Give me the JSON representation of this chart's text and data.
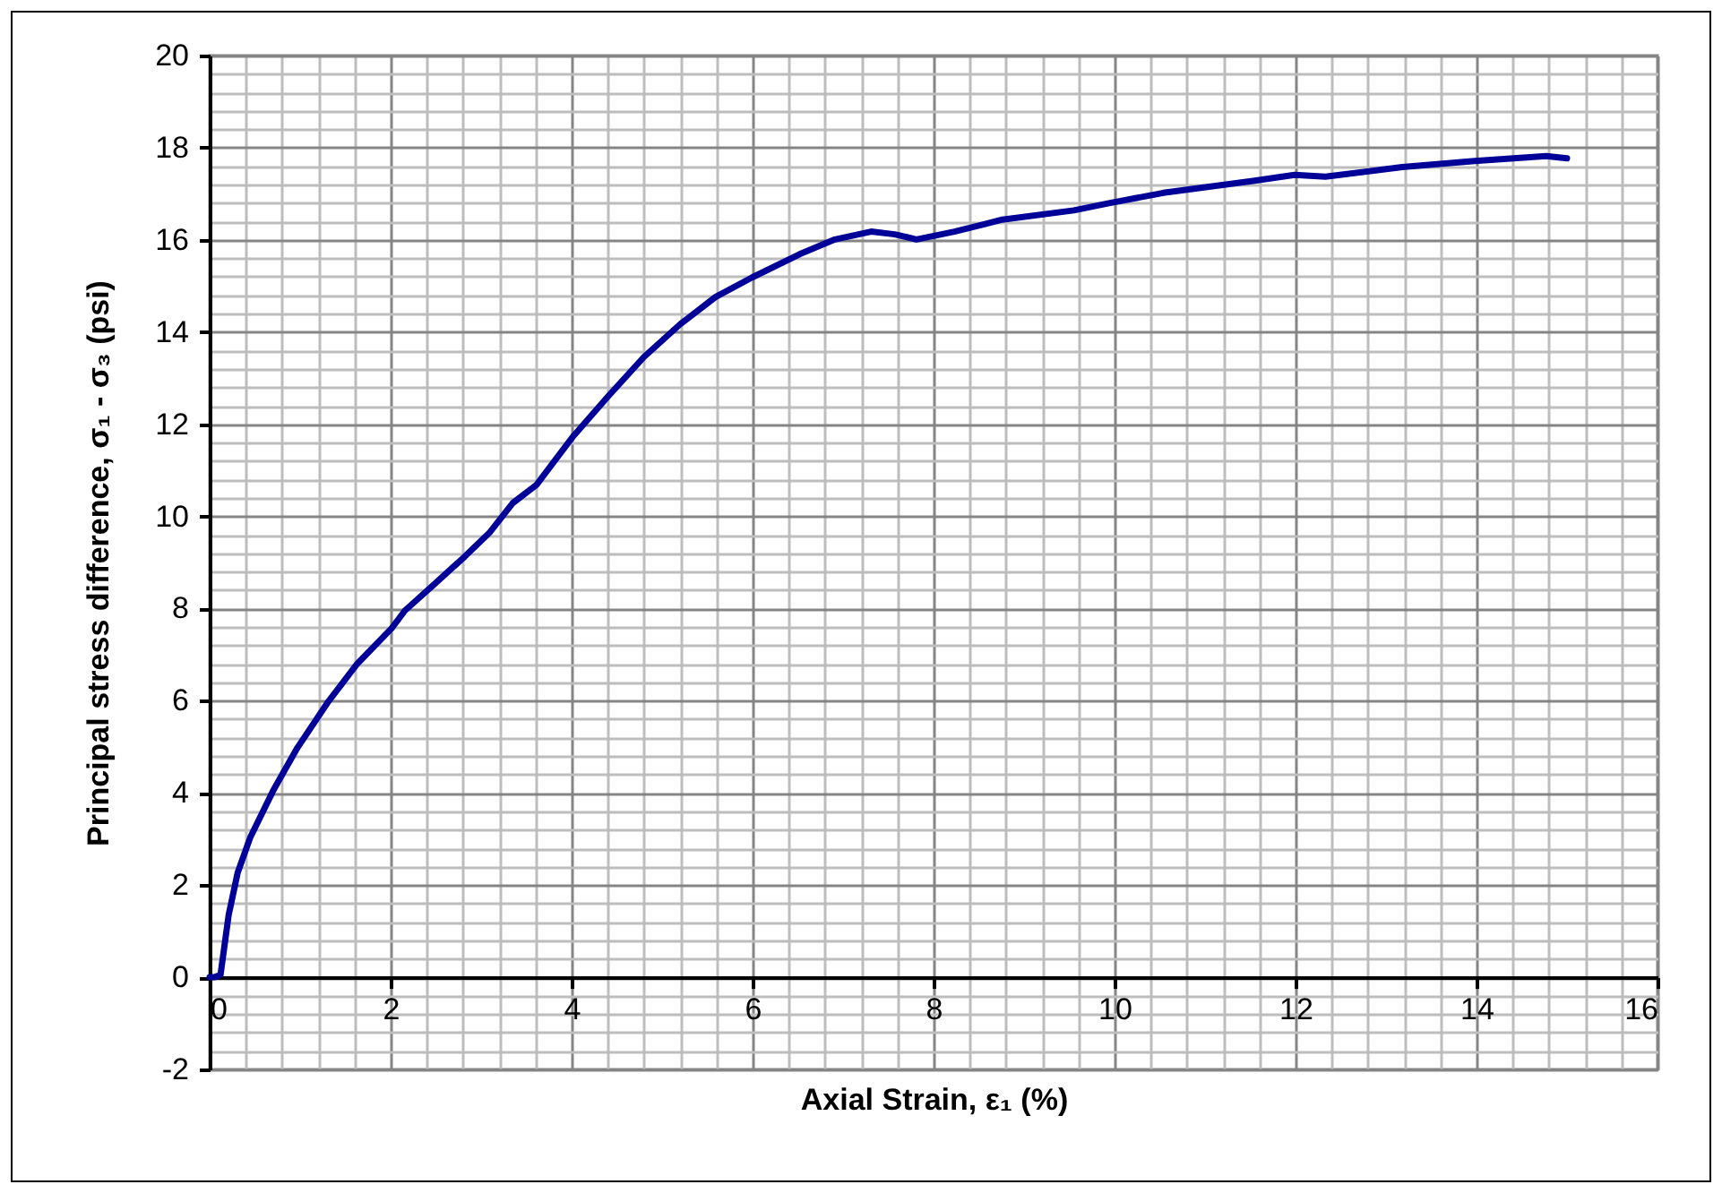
{
  "chart_data": {
    "type": "line",
    "xlabel": "Axial Strain, ε₁ (%)",
    "ylabel": "Principal stress difference, σ₁ - σ₃ (psi)",
    "xlim": [
      0,
      16
    ],
    "xticks": [
      0,
      2,
      4,
      6,
      8,
      10,
      12,
      14,
      16
    ],
    "ylim": [
      -2,
      20
    ],
    "yticks": [
      -2,
      0,
      2,
      4,
      6,
      8,
      10,
      12,
      14,
      16,
      18,
      20
    ],
    "grid": true,
    "line_style": "solid",
    "marker": "none",
    "series": [
      {
        "color": "#000099",
        "x": [
          0.0,
          0.05,
          0.12,
          0.21,
          0.31,
          0.45,
          0.71,
          0.97,
          1.3,
          1.63,
          2.01,
          2.16,
          2.49,
          2.82,
          3.09,
          3.35,
          3.61,
          4.01,
          4.41,
          4.8,
          5.2,
          5.59,
          5.99,
          6.52,
          6.91,
          7.24,
          7.31,
          7.57,
          7.81,
          8.23,
          8.56,
          8.76,
          9.55,
          9.95,
          10.54,
          11.53,
          11.99,
          12.33,
          13.18,
          13.98,
          14.77,
          15.0
        ],
        "values": [
          0.0,
          0.0,
          0.05,
          1.35,
          2.27,
          3.04,
          4.08,
          4.98,
          5.95,
          6.8,
          7.57,
          7.96,
          8.54,
          9.13,
          9.64,
          10.29,
          10.68,
          11.72,
          12.62,
          13.46,
          14.17,
          14.76,
          15.18,
          15.69,
          16.01,
          16.15,
          16.18,
          16.12,
          16.01,
          16.18,
          16.34,
          16.44,
          16.64,
          16.8,
          17.02,
          17.28,
          17.41,
          17.37,
          17.58,
          17.71,
          17.82,
          17.77
        ]
      }
    ]
  }
}
